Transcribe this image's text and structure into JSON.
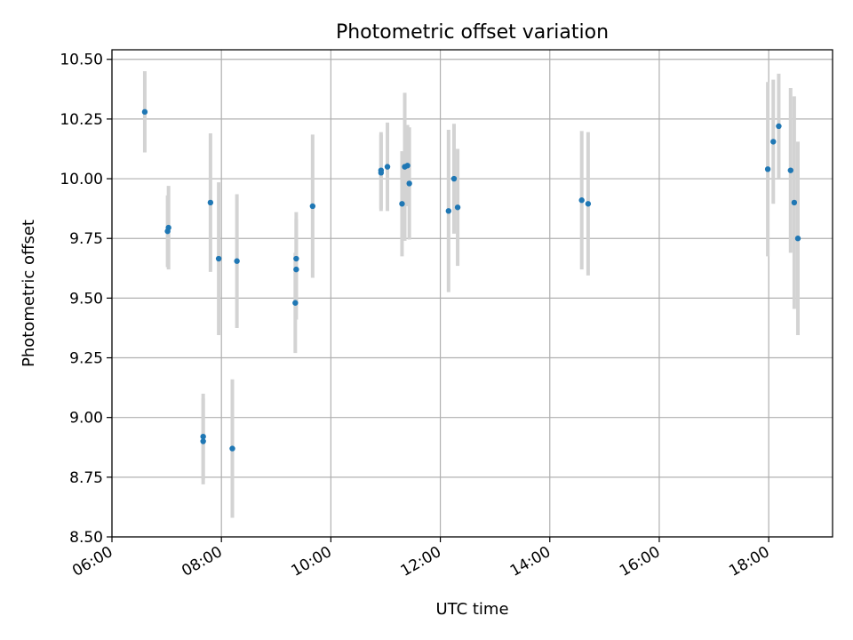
{
  "chart_data": {
    "type": "scatter",
    "title": "Photometric offset variation",
    "xlabel": "UTC time",
    "ylabel": "Photometric offset",
    "xlim": [
      "06:00",
      "19:10"
    ],
    "ylim": [
      8.5,
      10.54
    ],
    "x_ticks": [
      "06:00",
      "08:00",
      "10:00",
      "12:00",
      "14:00",
      "16:00",
      "18:00"
    ],
    "y_ticks": [
      "8.50",
      "8.75",
      "9.00",
      "9.25",
      "9.50",
      "9.75",
      "10.00",
      "10.25",
      "10.50"
    ],
    "grid": true,
    "error_bars": true,
    "colors": {
      "points": "#1f77b4",
      "error_bars": "#d3d3d3",
      "grid": "#b0b0b0"
    },
    "points": [
      {
        "x": "06:36",
        "y": 10.28,
        "yerr": 0.17
      },
      {
        "x": "07:01",
        "y": 9.78,
        "yerr": 0.15
      },
      {
        "x": "07:02",
        "y": 9.795,
        "yerr": 0.175
      },
      {
        "x": "07:40",
        "y": 8.92,
        "yerr": 0.18
      },
      {
        "x": "07:40",
        "y": 8.9,
        "yerr": 0.18
      },
      {
        "x": "07:48",
        "y": 9.9,
        "yerr": 0.29
      },
      {
        "x": "07:57",
        "y": 9.665,
        "yerr": 0.32
      },
      {
        "x": "08:12",
        "y": 8.87,
        "yerr": 0.29
      },
      {
        "x": "08:17",
        "y": 9.655,
        "yerr": 0.28
      },
      {
        "x": "09:21",
        "y": 9.48,
        "yerr": 0.21
      },
      {
        "x": "09:22",
        "y": 9.62,
        "yerr": 0.21
      },
      {
        "x": "09:22",
        "y": 9.665,
        "yerr": 0.195
      },
      {
        "x": "09:40",
        "y": 9.885,
        "yerr": 0.3
      },
      {
        "x": "10:55",
        "y": 10.035,
        "yerr": 0.16
      },
      {
        "x": "10:55",
        "y": 10.025,
        "yerr": 0.16
      },
      {
        "x": "11:02",
        "y": 10.05,
        "yerr": 0.185
      },
      {
        "x": "11:18",
        "y": 9.895,
        "yerr": 0.22
      },
      {
        "x": "11:21",
        "y": 10.05,
        "yerr": 0.31
      },
      {
        "x": "11:24",
        "y": 10.055,
        "yerr": 0.17
      },
      {
        "x": "11:26",
        "y": 9.98,
        "yerr": 0.235
      },
      {
        "x": "12:09",
        "y": 9.865,
        "yerr": 0.34
      },
      {
        "x": "12:15",
        "y": 10.0,
        "yerr": 0.23
      },
      {
        "x": "12:19",
        "y": 9.88,
        "yerr": 0.245
      },
      {
        "x": "14:35",
        "y": 9.91,
        "yerr": 0.29
      },
      {
        "x": "14:42",
        "y": 9.895,
        "yerr": 0.3
      },
      {
        "x": "17:59",
        "y": 10.04,
        "yerr": 0.365
      },
      {
        "x": "18:05",
        "y": 10.155,
        "yerr": 0.26
      },
      {
        "x": "18:11",
        "y": 10.22,
        "yerr": 0.22
      },
      {
        "x": "18:24",
        "y": 10.035,
        "yerr": 0.345
      },
      {
        "x": "18:28",
        "y": 9.9,
        "yerr": 0.445
      },
      {
        "x": "18:32",
        "y": 9.75,
        "yerr": 0.405
      }
    ]
  }
}
